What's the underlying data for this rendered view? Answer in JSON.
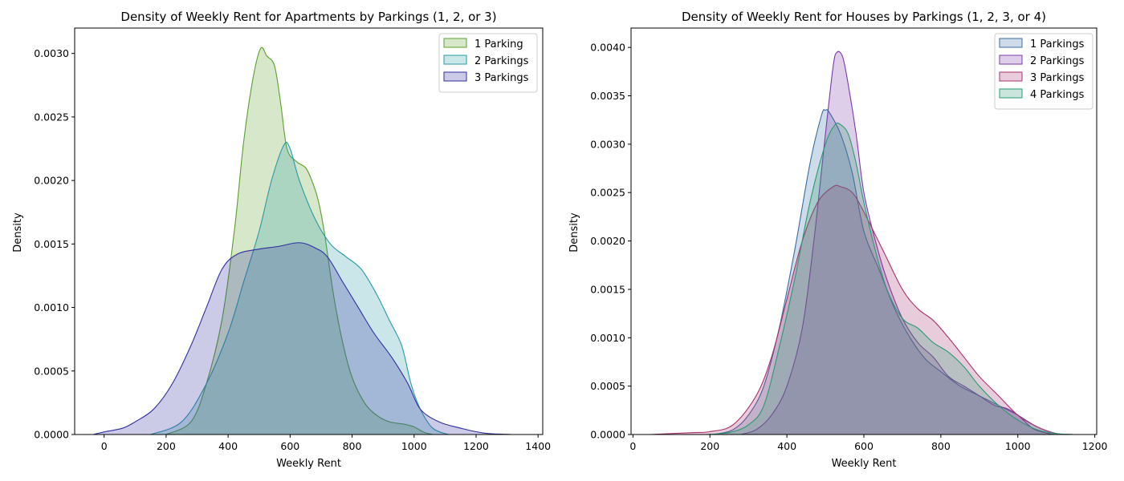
{
  "chart_data": [
    {
      "type": "area",
      "title": "Density of Weekly Rent for Apartments by Parkings (1, 2, or 3)",
      "xlabel": "Weekly Rent",
      "ylabel": "Density",
      "xlim": [
        -95,
        1415
      ],
      "ylim": [
        0,
        0.0032
      ],
      "xticks": [
        0,
        200,
        400,
        600,
        800,
        1000,
        1200,
        1400
      ],
      "xtick_labels": [
        "0",
        "200",
        "400",
        "600",
        "800",
        "1000",
        "1200",
        "1400"
      ],
      "yticks": [
        0,
        0.0005,
        0.001,
        0.0015,
        0.002,
        0.0025,
        0.003
      ],
      "ytick_labels": [
        "0.0000",
        "0.0005",
        "0.0010",
        "0.0015",
        "0.0020",
        "0.0025",
        "0.0030"
      ],
      "legend": "top-right",
      "grid": false,
      "series": [
        {
          "name": "1 Parking",
          "color": "#5aa02c",
          "points": [
            [
              200,
              0
            ],
            [
              280,
              0.0001
            ],
            [
              330,
              0.0004
            ],
            [
              380,
              0.0009
            ],
            [
              420,
              0.0016
            ],
            [
              450,
              0.0023
            ],
            [
              480,
              0.0028
            ],
            [
              505,
              0.00304
            ],
            [
              525,
              0.00298
            ],
            [
              550,
              0.0029
            ],
            [
              570,
              0.0026
            ],
            [
              590,
              0.00225
            ],
            [
              620,
              0.00215
            ],
            [
              650,
              0.0021
            ],
            [
              670,
              0.002
            ],
            [
              690,
              0.00185
            ],
            [
              710,
              0.0016
            ],
            [
              740,
              0.0011
            ],
            [
              770,
              0.00072
            ],
            [
              800,
              0.00045
            ],
            [
              840,
              0.00025
            ],
            [
              880,
              0.00015
            ],
            [
              920,
              0.0001
            ],
            [
              970,
              8e-05
            ],
            [
              1000,
              6e-05
            ],
            [
              1030,
              2e-05
            ],
            [
              1060,
              0
            ]
          ]
        },
        {
          "name": "2 Parkings",
          "color": "#2a9aa6",
          "points": [
            [
              150,
              0
            ],
            [
              250,
              0.0001
            ],
            [
              330,
              0.0004
            ],
            [
              400,
              0.0008
            ],
            [
              450,
              0.0012
            ],
            [
              500,
              0.0016
            ],
            [
              540,
              0.002
            ],
            [
              580,
              0.00228
            ],
            [
              600,
              0.00225
            ],
            [
              630,
              0.002
            ],
            [
              680,
              0.0017
            ],
            [
              730,
              0.0015
            ],
            [
              780,
              0.0014
            ],
            [
              830,
              0.0013
            ],
            [
              880,
              0.0011
            ],
            [
              920,
              0.0009
            ],
            [
              960,
              0.0007
            ],
            [
              990,
              0.0004
            ],
            [
              1020,
              0.0002
            ],
            [
              1060,
              5e-05
            ],
            [
              1110,
              0
            ]
          ]
        },
        {
          "name": "3 Parkings",
          "color": "#2f2fa0",
          "points": [
            [
              -35,
              0
            ],
            [
              0,
              2e-05
            ],
            [
              60,
              5e-05
            ],
            [
              100,
              0.0001
            ],
            [
              160,
              0.0002
            ],
            [
              220,
              0.0004
            ],
            [
              280,
              0.0007
            ],
            [
              330,
              0.001
            ],
            [
              380,
              0.0013
            ],
            [
              430,
              0.00142
            ],
            [
              500,
              0.00146
            ],
            [
              560,
              0.00148
            ],
            [
              630,
              0.00151
            ],
            [
              680,
              0.00147
            ],
            [
              720,
              0.0014
            ],
            [
              770,
              0.0012
            ],
            [
              820,
              0.001
            ],
            [
              870,
              0.0008
            ],
            [
              930,
              0.0006
            ],
            [
              980,
              0.0004
            ],
            [
              1020,
              0.0002
            ],
            [
              1080,
              0.0001
            ],
            [
              1150,
              5e-05
            ],
            [
              1230,
              1e-05
            ],
            [
              1320,
              0
            ]
          ]
        }
      ]
    },
    {
      "type": "area",
      "title": "Density of Weekly Rent for Houses by Parkings (1, 2, 3, or 4)",
      "xlabel": "Weekly Rent",
      "ylabel": "Density",
      "xlim": [
        -5,
        1205
      ],
      "ylim": [
        0,
        0.0042
      ],
      "xticks": [
        0,
        200,
        400,
        600,
        800,
        1000,
        1200
      ],
      "xtick_labels": [
        "0",
        "200",
        "400",
        "600",
        "800",
        "1000",
        "1200"
      ],
      "yticks": [
        0,
        0.0005,
        0.001,
        0.0015,
        0.002,
        0.0025,
        0.003,
        0.0035,
        0.004
      ],
      "ytick_labels": [
        "0.0000",
        "0.0005",
        "0.0010",
        "0.0015",
        "0.0020",
        "0.0025",
        "0.0030",
        "0.0035",
        "0.0040"
      ],
      "legend": "top-right",
      "grid": false,
      "series": [
        {
          "name": "1 Parkings",
          "color": "#3a6ea5",
          "points": [
            [
              210,
              0
            ],
            [
              260,
              5e-05
            ],
            [
              300,
              0.0002
            ],
            [
              340,
              0.0005
            ],
            [
              380,
              0.0011
            ],
            [
              420,
              0.0019
            ],
            [
              460,
              0.0028
            ],
            [
              490,
              0.0033
            ],
            [
              500,
              0.00335
            ],
            [
              510,
              0.00333
            ],
            [
              540,
              0.0031
            ],
            [
              570,
              0.0027
            ],
            [
              600,
              0.0021
            ],
            [
              640,
              0.0017
            ],
            [
              680,
              0.0013
            ],
            [
              720,
              0.001
            ],
            [
              760,
              0.00078
            ],
            [
              800,
              0.00065
            ],
            [
              850,
              0.0005
            ],
            [
              900,
              0.0004
            ],
            [
              950,
              0.0003
            ],
            [
              1000,
              0.0002
            ],
            [
              1050,
              8e-05
            ],
            [
              1100,
              1e-05
            ],
            [
              1130,
              0
            ]
          ]
        },
        {
          "name": "2 Parkings",
          "color": "#7a3aa8",
          "points": [
            [
              280,
              0
            ],
            [
              320,
              5e-05
            ],
            [
              360,
              0.0002
            ],
            [
              400,
              0.0005
            ],
            [
              440,
              0.0011
            ],
            [
              470,
              0.002
            ],
            [
              500,
              0.0031
            ],
            [
              520,
              0.0038
            ],
            [
              530,
              0.00395
            ],
            [
              545,
              0.0039
            ],
            [
              560,
              0.0036
            ],
            [
              580,
              0.0031
            ],
            [
              600,
              0.0025
            ],
            [
              630,
              0.002
            ],
            [
              660,
              0.0016
            ],
            [
              700,
              0.0012
            ],
            [
              740,
              0.00095
            ],
            [
              780,
              0.0008
            ],
            [
              820,
              0.0006
            ],
            [
              860,
              0.0005
            ],
            [
              900,
              0.0004
            ],
            [
              940,
              0.0003
            ],
            [
              970,
              0.00027
            ],
            [
              1000,
              0.0002
            ],
            [
              1040,
              6e-05
            ],
            [
              1080,
              1e-05
            ],
            [
              1100,
              0
            ]
          ]
        },
        {
          "name": "3 Parkings",
          "color": "#a8326e",
          "points": [
            [
              45,
              0
            ],
            [
              100,
              1e-05
            ],
            [
              160,
              2e-05
            ],
            [
              200,
              3e-05
            ],
            [
              260,
              0.0001
            ],
            [
              320,
              0.0004
            ],
            [
              360,
              0.0008
            ],
            [
              400,
              0.0014
            ],
            [
              440,
              0.002
            ],
            [
              480,
              0.0024
            ],
            [
              520,
              0.00256
            ],
            [
              540,
              0.00256
            ],
            [
              570,
              0.0025
            ],
            [
              600,
              0.0023
            ],
            [
              650,
              0.0019
            ],
            [
              700,
              0.0015
            ],
            [
              740,
              0.0013
            ],
            [
              780,
              0.00118
            ],
            [
              820,
              0.001
            ],
            [
              860,
              0.0008
            ],
            [
              900,
              0.0006
            ],
            [
              950,
              0.0004
            ],
            [
              1000,
              0.0002
            ],
            [
              1050,
              8e-05
            ],
            [
              1100,
              1e-05
            ],
            [
              1145,
              0
            ]
          ]
        },
        {
          "name": "4 Parkings",
          "color": "#2a9a74",
          "points": [
            [
              190,
              0
            ],
            [
              250,
              2e-05
            ],
            [
              300,
              0.0001
            ],
            [
              340,
              0.0003
            ],
            [
              380,
              0.0009
            ],
            [
              420,
              0.0016
            ],
            [
              460,
              0.0024
            ],
            [
              500,
              0.003
            ],
            [
              525,
              0.0032
            ],
            [
              540,
              0.0032
            ],
            [
              560,
              0.0031
            ],
            [
              580,
              0.0028
            ],
            [
              600,
              0.0024
            ],
            [
              630,
              0.0019
            ],
            [
              660,
              0.0015
            ],
            [
              700,
              0.0012
            ],
            [
              740,
              0.0011
            ],
            [
              780,
              0.00095
            ],
            [
              820,
              0.00085
            ],
            [
              860,
              0.0007
            ],
            [
              900,
              0.0005
            ],
            [
              950,
              0.0003
            ],
            [
              1000,
              0.00015
            ],
            [
              1050,
              5e-05
            ],
            [
              1100,
              1e-05
            ],
            [
              1145,
              0
            ]
          ]
        }
      ]
    }
  ]
}
